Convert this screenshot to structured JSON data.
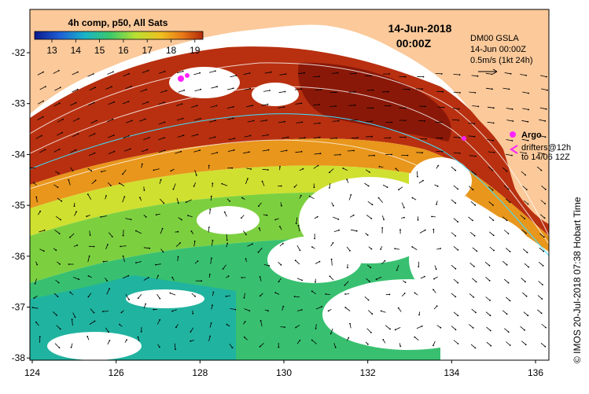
{
  "map": {
    "date": "14-Jun-2018",
    "time": "00:00Z",
    "colorbar": {
      "title": "4h comp, p50, All Sats",
      "ticks": [
        "13",
        "14",
        "15",
        "16",
        "17",
        "18",
        "19"
      ],
      "colors": [
        "#0a1a8c",
        "#1f5fd6",
        "#19b4c8",
        "#3cc86a",
        "#b8e032",
        "#f0c020",
        "#e87818",
        "#b02808"
      ]
    },
    "current_legend": {
      "line1": "DM00 GSLA",
      "line2": "14-Jun 00:00Z",
      "line3": "0.5m/s (1kt 24h)"
    },
    "argo_legend": {
      "argo_label": "Argo",
      "drifters_label": "drifters@12h",
      "drifters_to": "to 14/06 12Z",
      "argo_color": "#ff22ff"
    },
    "credit": "© IMOS 20-Jul-2018 07:38 Hobart Time",
    "axes": {
      "x_ticks": [
        "124",
        "126",
        "128",
        "130",
        "132",
        "134",
        "136"
      ],
      "y_ticks": [
        "-32",
        "-33",
        "-34",
        "-35",
        "-36",
        "-37",
        "-38"
      ]
    },
    "land_color": "#fbc99a"
  }
}
